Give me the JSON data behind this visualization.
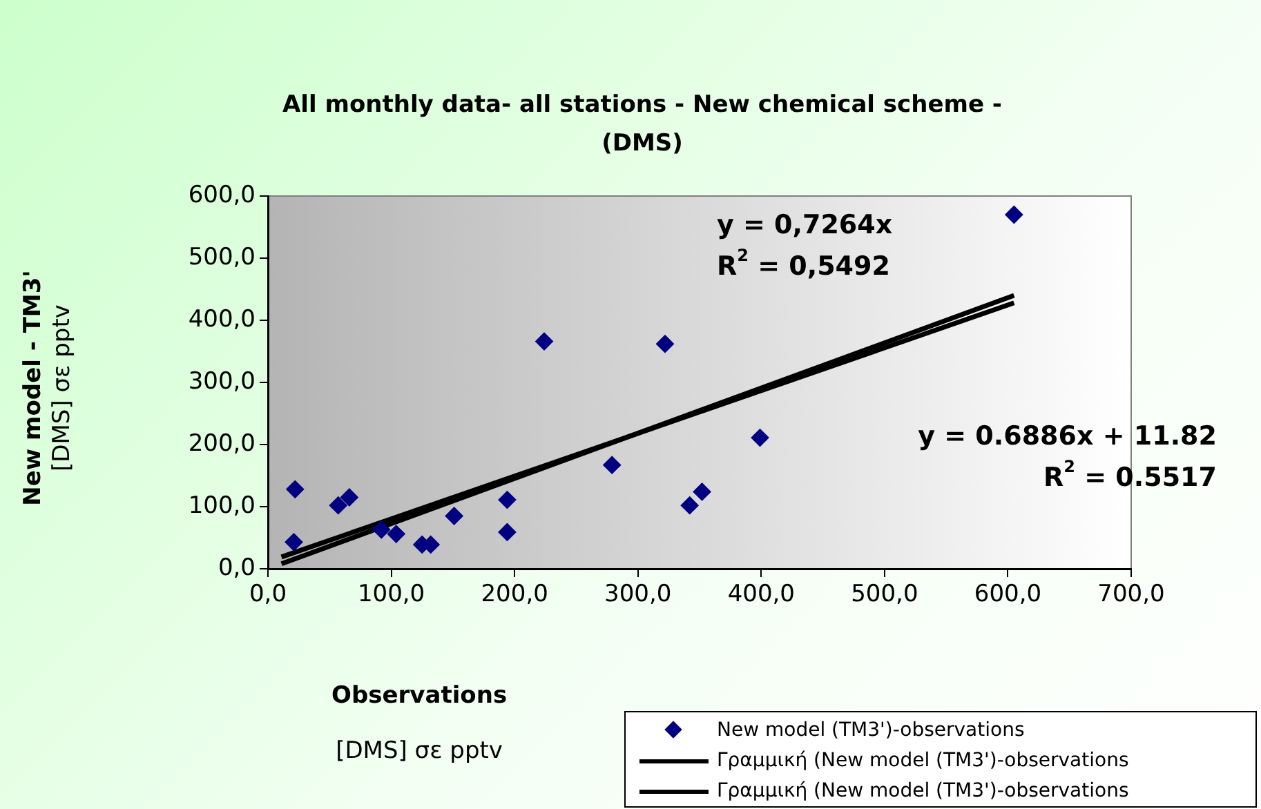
{
  "chart_data": {
    "type": "scatter",
    "title": "All monthly data- all stations - New chemical scheme - (DMS)",
    "xlabel": "Observations\n[DMS] σε pptv",
    "ylabel": "New model - TM3'\n[DMS] σε pptv",
    "series": [
      {
        "name": "New model (TM3')-observations",
        "color": "#000080",
        "marker": "diamond",
        "x": [
          22,
          21,
          57,
          66,
          92,
          104,
          125,
          132,
          151,
          194,
          194,
          224,
          279,
          322,
          342,
          352,
          399,
          605
        ],
        "values": [
          128,
          43,
          102,
          115,
          63,
          56,
          39,
          39,
          85,
          111,
          59,
          366,
          167,
          362,
          102,
          124,
          211,
          570
        ]
      },
      {
        "name": "Γραμμική (New model (TM3')-observations",
        "type": "line",
        "color": "#000000",
        "marker": "none",
        "x": [
          11,
          605
        ],
        "values": [
          8,
          440
        ]
      },
      {
        "name": "Γραμμική (New model (TM3')-observations",
        "type": "line",
        "color": "#000000",
        "marker": "none",
        "x": [
          11,
          605
        ],
        "values": [
          19,
          428
        ]
      }
    ],
    "xlim": [
      0,
      700
    ],
    "xticks": [
      {
        "value": 0,
        "label": "0,0"
      },
      {
        "value": 100,
        "label": "100,0"
      },
      {
        "value": 200,
        "label": "200,0"
      },
      {
        "value": 300,
        "label": "300,0"
      },
      {
        "value": 400,
        "label": "400,0"
      },
      {
        "value": 500,
        "label": "500,0"
      },
      {
        "value": 600,
        "label": "600,0"
      },
      {
        "value": 700,
        "label": "700,0"
      }
    ],
    "ylim": [
      0,
      600
    ],
    "yticks": [
      {
        "value": 0,
        "label": "0,0"
      },
      {
        "value": 100,
        "label": "100,0"
      },
      {
        "value": 200,
        "label": "200,0"
      },
      {
        "value": 300,
        "label": "300,0"
      },
      {
        "value": 400,
        "label": "400,0"
      },
      {
        "value": 500,
        "label": "500,0"
      },
      {
        "value": 600,
        "label": "600,0"
      }
    ],
    "grid": false,
    "legend": "bottom right",
    "annotations": [
      "y = 0,7264x\nR$^{2}$ = 0,5492",
      "y = 0.6886x + 11.82\nR$^{2}$ = 0.5517"
    ]
  }
}
